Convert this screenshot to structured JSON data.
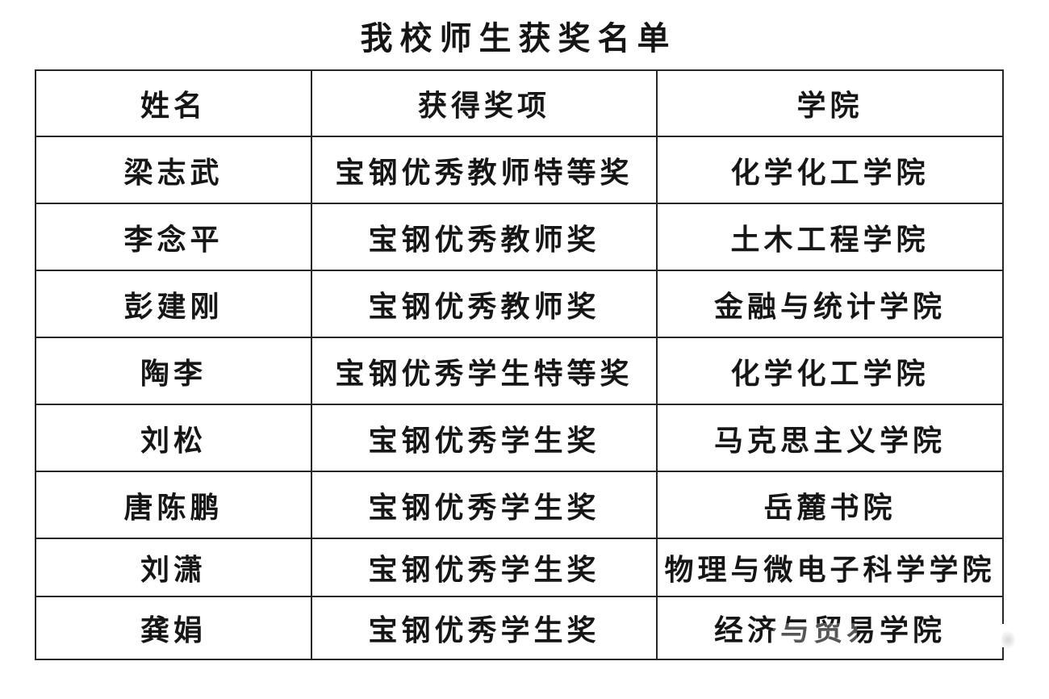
{
  "title": "我校师生获奖名单",
  "table": {
    "headers": [
      "姓名",
      "获得奖项",
      "学院"
    ],
    "rows": [
      {
        "name": "梁志武",
        "award": "宝钢优秀教师特等奖",
        "college": "化学化工学院"
      },
      {
        "name": "李念平",
        "award": "宝钢优秀教师奖",
        "college": "土木工程学院"
      },
      {
        "name": "彭建刚",
        "award": "宝钢优秀教师奖",
        "college": "金融与统计学院"
      },
      {
        "name": "陶李",
        "award": "宝钢优秀学生特等奖",
        "college": "化学化工学院"
      },
      {
        "name": "刘松",
        "award": "宝钢优秀学生奖",
        "college": "马克思主义学院"
      },
      {
        "name": "唐陈鹏",
        "award": "宝钢优秀学生奖",
        "college": "岳麓书院"
      },
      {
        "name": "刘潇",
        "award": "宝钢优秀学生奖",
        "college": "物理与微电子科学学院"
      },
      {
        "name": "龚娟",
        "award": "宝钢优秀学生奖",
        "college": "经济与贸易学院"
      }
    ]
  },
  "colors": {
    "background": "#ffffff",
    "text": "#161616",
    "border": "#262626"
  }
}
